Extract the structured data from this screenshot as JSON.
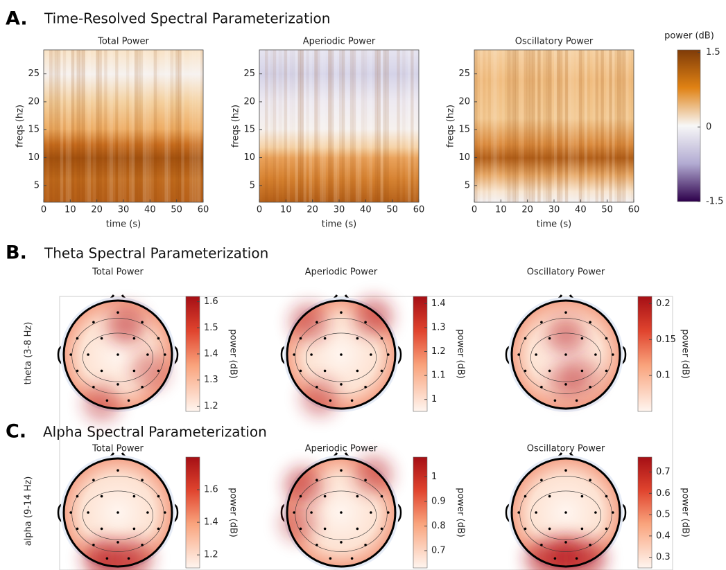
{
  "sections": [
    {
      "letter": "A.",
      "title": "Time-Resolved Spectral Parameterization"
    },
    {
      "letter": "B.",
      "title": "Theta Spectral Parameterization",
      "row_label": "theta (3-8 Hz)"
    },
    {
      "letter": "C.",
      "title": "Alpha Spectral Parameterization",
      "row_label": "alpha (9-14 Hz)"
    }
  ],
  "chart_data": [
    {
      "type": "heatmap",
      "title": "Total Power",
      "x_label": "time (s)",
      "y_label": "freqs (hz)",
      "xlim": [
        0,
        60
      ],
      "xticks": [
        0,
        10,
        20,
        30,
        40,
        50,
        60
      ],
      "ylim": [
        2,
        29.3
      ],
      "yticks": [
        5,
        10,
        15,
        20,
        25
      ]
    },
    {
      "type": "heatmap",
      "title": "Aperiodic Power",
      "x_label": "time (s)",
      "y_label": "freqs (hz)",
      "xlim": [
        0,
        60
      ],
      "xticks": [
        0,
        10,
        20,
        30,
        40,
        50,
        60
      ],
      "ylim": [
        2,
        29.3
      ],
      "yticks": [
        5,
        10,
        15,
        20,
        25
      ]
    },
    {
      "type": "heatmap",
      "title": "Oscillatory Power",
      "x_label": "time (s)",
      "y_label": "freqs (hz)",
      "xlim": [
        0,
        60
      ],
      "xticks": [
        0,
        10,
        20,
        30,
        40,
        50,
        60
      ],
      "ylim": [
        2,
        29.3
      ],
      "yticks": [
        5,
        10,
        15,
        20,
        25
      ]
    },
    {
      "type": "colorbar",
      "title": "power (dB)",
      "ylim": [
        -1.5,
        1.55
      ],
      "yticks": [
        -1.5,
        0,
        1.5
      ]
    },
    {
      "type": "topomap",
      "title": "Total Power",
      "colorbar_label": "power (dB)",
      "ylim": [
        1.18,
        1.62
      ],
      "yticks": [
        1.2,
        1.3,
        1.4,
        1.5,
        1.6
      ]
    },
    {
      "type": "topomap",
      "title": "Aperiodic Power",
      "colorbar_label": "power (dB)",
      "ylim": [
        0.95,
        1.43
      ],
      "yticks": [
        1,
        1.1,
        1.2,
        1.3,
        1.4
      ]
    },
    {
      "type": "topomap",
      "title": "Oscillatory Power",
      "colorbar_label": "power (dB)",
      "ylim": [
        0.05,
        0.21
      ],
      "yticks": [
        0.1,
        0.15,
        0.2
      ]
    },
    {
      "type": "topomap",
      "title": "Total Power",
      "colorbar_label": "power (dB)",
      "ylim": [
        1.12,
        1.8
      ],
      "yticks": [
        1.2,
        1.4,
        1.6
      ]
    },
    {
      "type": "topomap",
      "title": "Aperiodic Power",
      "colorbar_label": "power (dB)",
      "ylim": [
        0.63,
        1.08
      ],
      "yticks": [
        0.7,
        0.8,
        0.9,
        1
      ]
    },
    {
      "type": "topomap",
      "title": "Oscillatory Power",
      "colorbar_label": "power (dB)",
      "ylim": [
        0.25,
        0.77
      ],
      "yticks": [
        0.3,
        0.4,
        0.5,
        0.6,
        0.7
      ]
    }
  ]
}
